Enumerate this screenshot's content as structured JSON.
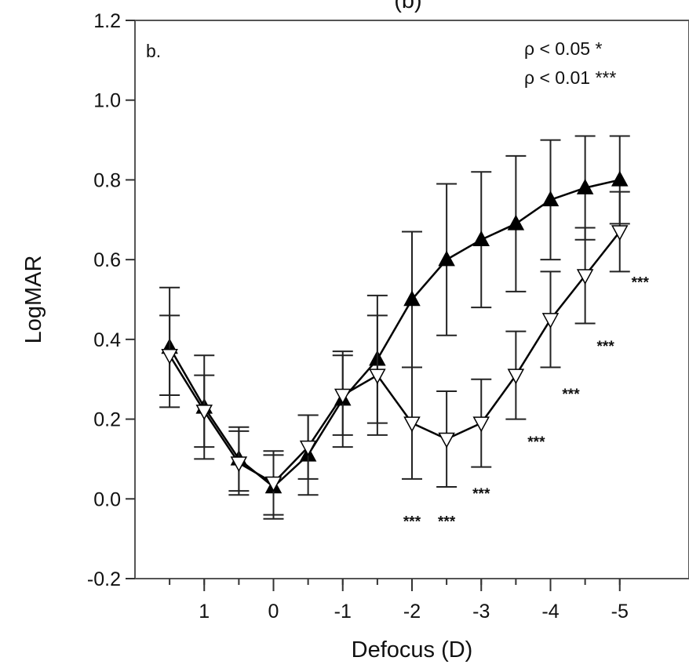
{
  "chart_data": {
    "type": "line",
    "top_title_fragment": "(b)",
    "panel_label": "b.",
    "xlabel": "Defocus (D)",
    "ylabel": "LogMAR",
    "x_categories": [
      1.5,
      1,
      0.5,
      0,
      -0.5,
      -1,
      -1.5,
      -2,
      -2.5,
      -3,
      -3.5,
      -4,
      -4.5,
      -5
    ],
    "x_tick_labels": [
      {
        "x": 1,
        "label": "1"
      },
      {
        "x": 0,
        "label": "0"
      },
      {
        "x": -1,
        "label": "-1"
      },
      {
        "x": -2,
        "label": "-2"
      },
      {
        "x": -3,
        "label": "-3"
      },
      {
        "x": -4,
        "label": "-4"
      },
      {
        "x": -5,
        "label": "-5"
      }
    ],
    "xlim": [
      2,
      -6
    ],
    "ylim": [
      -0.2,
      1.2
    ],
    "y_ticks": [
      -0.2,
      0.0,
      0.2,
      0.4,
      0.6,
      0.8,
      1.0,
      1.2
    ],
    "y_tick_labels": [
      "-0.2",
      "0.0",
      "0.2",
      "0.4",
      "0.6",
      "0.8",
      "1.0",
      "1.2"
    ],
    "significance_legend": [
      "ρ < 0.05 *",
      "ρ < 0.01 ***"
    ],
    "significance_marks": [
      {
        "x": -2,
        "y": -0.05,
        "label": "***"
      },
      {
        "x": -2.5,
        "y": -0.05,
        "label": "***"
      },
      {
        "x": -3,
        "y": 0.02,
        "label": "***"
      },
      {
        "x": -3.5,
        "y": 0.15,
        "label": "***"
      },
      {
        "x": -4,
        "y": 0.27,
        "label": "***"
      },
      {
        "x": -4.5,
        "y": 0.39,
        "label": "***"
      },
      {
        "x": -5,
        "y": 0.55,
        "label": "***"
      }
    ],
    "series": [
      {
        "marker": "filled-triangle-up",
        "color": "#000000",
        "values": [
          0.38,
          0.23,
          0.1,
          0.03,
          0.11,
          0.25,
          0.35,
          0.5,
          0.6,
          0.65,
          0.69,
          0.75,
          0.78,
          0.8
        ],
        "error": [
          0.15,
          0.13,
          0.08,
          0.08,
          0.1,
          0.12,
          0.16,
          0.17,
          0.19,
          0.17,
          0.17,
          0.15,
          0.13,
          0.11
        ]
      },
      {
        "marker": "open-triangle-down",
        "color": "#000000",
        "values": [
          0.36,
          0.22,
          0.09,
          0.04,
          0.13,
          0.26,
          0.31,
          0.19,
          0.15,
          0.19,
          0.31,
          0.45,
          0.56,
          0.67
        ],
        "error": [
          0.1,
          0.09,
          0.08,
          0.08,
          0.08,
          0.1,
          0.15,
          0.14,
          0.12,
          0.11,
          0.11,
          0.12,
          0.12,
          0.1
        ]
      }
    ]
  }
}
